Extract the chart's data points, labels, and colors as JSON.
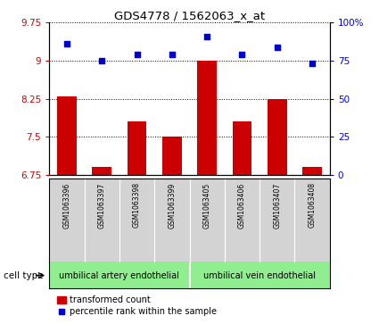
{
  "title": "GDS4778 / 1562063_x_at",
  "samples": [
    "GSM1063396",
    "GSM1063397",
    "GSM1063398",
    "GSM1063399",
    "GSM1063405",
    "GSM1063406",
    "GSM1063407",
    "GSM1063408"
  ],
  "bar_values": [
    8.3,
    6.9,
    7.8,
    7.5,
    9.0,
    7.8,
    8.25,
    6.9
  ],
  "dot_values": [
    86,
    75,
    79,
    79,
    91,
    79,
    84,
    73
  ],
  "bar_color": "#cc0000",
  "dot_color": "#0000cc",
  "ylim_left": [
    6.75,
    9.75
  ],
  "ylim_right": [
    0,
    100
  ],
  "yticks_left": [
    6.75,
    7.5,
    8.25,
    9.0,
    9.75
  ],
  "yticks_right": [
    0,
    25,
    50,
    75,
    100
  ],
  "ytick_labels_left": [
    "6.75",
    "7.5",
    "8.25",
    "9",
    "9.75"
  ],
  "ytick_labels_right": [
    "0",
    "25",
    "50",
    "75",
    "100%"
  ],
  "group1_label": "umbilical artery endothelial",
  "group2_label": "umbilical vein endothelial",
  "legend_bar_label": "transformed count",
  "legend_dot_label": "percentile rank within the sample",
  "plot_bg_color": "#ffffff",
  "sample_bg_color": "#d3d3d3",
  "cell_type_bg_color": "#90ee90",
  "bar_width": 0.55,
  "bar_baseline": 6.75
}
